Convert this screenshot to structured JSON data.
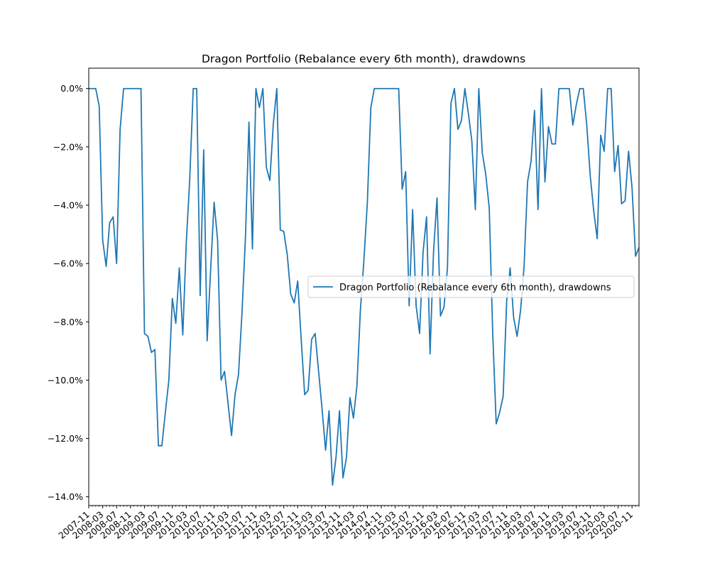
{
  "chart_data": {
    "type": "line",
    "title": "Dragon Portfolio (Rebalance every 6th month), drawdowns",
    "xlabel": "",
    "ylabel": "",
    "ylim": [
      -14.3,
      0.7
    ],
    "x_range": [
      "2007-11",
      "2021-03"
    ],
    "y_ticks": [
      0,
      -2,
      -4,
      -6,
      -8,
      -10,
      -12,
      -14
    ],
    "y_tick_labels": [
      "0.0%",
      "−2.0%",
      "−4.0%",
      "−6.0%",
      "−8.0%",
      "−10.0%",
      "−12.0%",
      "−14.0%"
    ],
    "x_tick_labels": [
      "2007-11",
      "2008-03",
      "2008-07",
      "2008-11",
      "2009-03",
      "2009-07",
      "2009-11",
      "2010-03",
      "2010-07",
      "2010-11",
      "2011-03",
      "2011-07",
      "2011-11",
      "2012-03",
      "2012-07",
      "2012-11",
      "2013-03",
      "2013-07",
      "2013-11",
      "2014-03",
      "2014-07",
      "2014-11",
      "2015-03",
      "2015-07",
      "2015-11",
      "2016-03",
      "2016-07",
      "2016-11",
      "2017-03",
      "2017-07",
      "2017-11",
      "2018-03",
      "2018-07",
      "2018-11",
      "2019-03",
      "2019-07",
      "2019-11",
      "2020-03",
      "2020-07",
      "2020-11"
    ],
    "grid": false,
    "legend_placement": "center-right",
    "series": [
      {
        "name": "Dragon Portfolio (Rebalance every 6th month), drawdowns",
        "color": "#1f77b4",
        "values": [
          0,
          0,
          0,
          -0.6,
          -5.2,
          -6.1,
          -4.6,
          -4.4,
          -6.0,
          -1.4,
          0,
          0,
          0,
          0,
          0,
          0,
          -8.4,
          -8.5,
          -9.05,
          -8.95,
          -12.25,
          -12.25,
          -11.1,
          -10.0,
          -7.2,
          -8.05,
          -6.15,
          -8.45,
          -5.3,
          -3.1,
          0,
          0,
          -7.1,
          -2.1,
          -8.65,
          -6.2,
          -3.9,
          -5.2,
          -10.0,
          -9.7,
          -10.8,
          -11.9,
          -10.5,
          -9.8,
          -7.7,
          -5.1,
          -1.15,
          -5.5,
          0,
          -0.65,
          0,
          -2.7,
          -3.15,
          -1.2,
          0,
          -4.85,
          -4.9,
          -5.7,
          -7.05,
          -7.35,
          -6.6,
          -8.6,
          -10.5,
          -10.35,
          -8.6,
          -8.4,
          -9.7,
          -11.0,
          -12.4,
          -11.05,
          -13.6,
          -12.65,
          -11.05,
          -13.35,
          -12.65,
          -10.6,
          -11.3,
          -10.2,
          -7.6,
          -5.9,
          -3.9,
          -0.65,
          0,
          0,
          0,
          0,
          0,
          0,
          0,
          0,
          -3.45,
          -2.85,
          -7.45,
          -4.15,
          -7.45,
          -8.4,
          -5.6,
          -4.4,
          -9.1,
          -5.6,
          -3.75,
          -7.8,
          -7.5,
          -6.15,
          -0.5,
          0,
          -1.4,
          -1.1,
          0,
          -0.85,
          -1.8,
          -4.15,
          0,
          -2.2,
          -2.95,
          -4.1,
          -8.4,
          -11.5,
          -11.1,
          -10.55,
          -7.3,
          -6.15,
          -7.85,
          -8.5,
          -7.6,
          -6.1,
          -3.2,
          -2.5,
          -0.75,
          -4.15,
          0,
          -3.2,
          -1.3,
          -1.9,
          -1.9,
          0,
          0,
          0,
          0,
          -1.25,
          -0.55,
          0,
          0,
          -1.25,
          -3.0,
          -4.2,
          -5.15,
          -1.6,
          -2.15,
          0,
          0,
          -2.85,
          -1.95,
          -3.95,
          -3.85,
          -2.15,
          -3.4,
          -5.75,
          -5.45
        ]
      }
    ]
  }
}
